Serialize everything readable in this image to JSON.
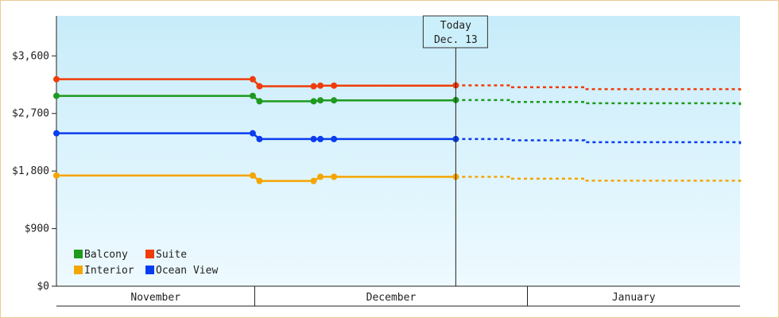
{
  "chart_data": {
    "type": "line",
    "y_ticks": [
      "$3,600",
      "$2,700",
      "$1,800",
      "$900",
      "$0"
    ],
    "y_tick_values": [
      3600,
      2700,
      1800,
      900,
      0
    ],
    "ylim": [
      0,
      4225
    ],
    "x_period_labels": [
      "November",
      "December",
      "January"
    ],
    "today_annotation": {
      "line1": "Today",
      "line2": "Dec. 13"
    },
    "colors": {
      "Balcony": "#1e9a1e",
      "Suite": "#f03c0a",
      "Interior": "#f5a500",
      "Ocean View": "#0a3cf0",
      "plot_top": "#c8ecfa",
      "plot_bottom": "#eefaff"
    },
    "legend_placement": "bottom-left",
    "legend_order": [
      "Balcony",
      "Suite",
      "Interior",
      "Ocean View"
    ],
    "series": [
      {
        "name": "Suite",
        "values": [
          [
            "Oct 15",
            3235
          ],
          [
            "Nov 13",
            3235
          ],
          [
            "Nov 14",
            3125
          ],
          [
            "Nov 22",
            3125
          ],
          [
            "Nov 23",
            3135
          ],
          [
            "Nov 25",
            3135
          ],
          [
            "Dec 13",
            3140
          ],
          [
            "Dec 21",
            3110
          ],
          [
            "Jan 1",
            3080
          ],
          [
            "Jan 24",
            3030
          ]
        ]
      },
      {
        "name": "Balcony",
        "values": [
          [
            "Oct 15",
            2975
          ],
          [
            "Nov 13",
            2975
          ],
          [
            "Nov 14",
            2890
          ],
          [
            "Nov 22",
            2890
          ],
          [
            "Nov 23",
            2905
          ],
          [
            "Nov 25",
            2905
          ],
          [
            "Dec 13",
            2910
          ],
          [
            "Dec 21",
            2880
          ],
          [
            "Jan 1",
            2860
          ],
          [
            "Jan 24",
            2825
          ]
        ]
      },
      {
        "name": "Ocean View",
        "values": [
          [
            "Oct 15",
            2390
          ],
          [
            "Nov 13",
            2390
          ],
          [
            "Nov 14",
            2300
          ],
          [
            "Nov 22",
            2300
          ],
          [
            "Nov 23",
            2300
          ],
          [
            "Nov 25",
            2300
          ],
          [
            "Dec 13",
            2300
          ],
          [
            "Dec 21",
            2280
          ],
          [
            "Jan 1",
            2250
          ],
          [
            "Jan 24",
            2190
          ]
        ]
      },
      {
        "name": "Interior",
        "values": [
          [
            "Oct 15",
            1730
          ],
          [
            "Nov 13",
            1730
          ],
          [
            "Nov 14",
            1645
          ],
          [
            "Nov 22",
            1645
          ],
          [
            "Nov 23",
            1710
          ],
          [
            "Nov 25",
            1710
          ],
          [
            "Dec 13",
            1710
          ],
          [
            "Dec 21",
            1680
          ],
          [
            "Jan 1",
            1650
          ],
          [
            "Jan 24",
            1600
          ]
        ]
      }
    ],
    "today_x": "Dec 13",
    "history_end_index": 6
  }
}
